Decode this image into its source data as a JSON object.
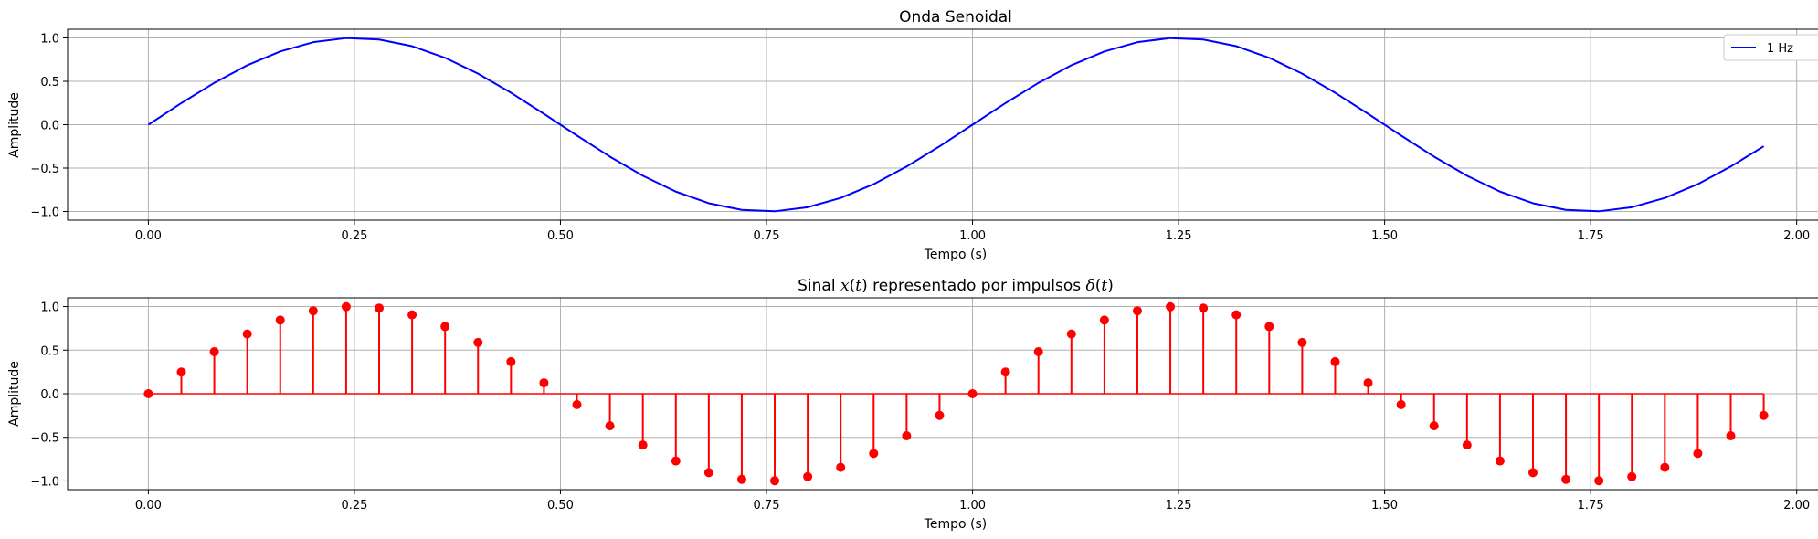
{
  "chart_data": [
    {
      "type": "line",
      "title": "Onda Senoidal",
      "xlabel": "Tempo (s)",
      "ylabel": "Amplitude",
      "xlim": [
        -0.098,
        2.058
      ],
      "ylim": [
        -1.1,
        1.1
      ],
      "xticks": [
        "0.00",
        "0.25",
        "0.50",
        "0.75",
        "1.00",
        "1.25",
        "1.50",
        "1.75",
        "2.00"
      ],
      "yticks": [
        "1.0",
        "0.5",
        "0.0",
        "−0.5",
        "−1.0"
      ],
      "grid": true,
      "legend_position": "top-right",
      "color": "#0000ff",
      "series": [
        {
          "name": "1 Hz",
          "x": [
            0.0,
            0.04,
            0.08,
            0.12,
            0.16,
            0.2,
            0.24,
            0.28,
            0.32,
            0.36,
            0.4,
            0.44,
            0.48,
            0.52,
            0.56,
            0.6,
            0.64,
            0.68,
            0.72,
            0.76,
            0.8,
            0.84,
            0.88,
            0.92,
            0.96,
            1.0,
            1.04,
            1.08,
            1.12,
            1.16,
            1.2,
            1.24,
            1.28,
            1.32,
            1.36,
            1.4,
            1.44,
            1.48,
            1.52,
            1.56,
            1.6,
            1.64,
            1.68,
            1.72,
            1.76,
            1.8,
            1.84,
            1.88,
            1.92,
            1.96
          ],
          "y": [
            0.0,
            0.249,
            0.482,
            0.685,
            0.844,
            0.951,
            0.998,
            0.982,
            0.905,
            0.771,
            0.588,
            0.368,
            0.125,
            -0.125,
            -0.368,
            -0.588,
            -0.771,
            -0.905,
            -0.982,
            -0.998,
            -0.951,
            -0.844,
            -0.685,
            -0.482,
            -0.249,
            0.0,
            0.249,
            0.482,
            0.685,
            0.844,
            0.951,
            0.998,
            0.982,
            0.905,
            0.771,
            0.588,
            0.368,
            0.125,
            -0.125,
            -0.368,
            -0.588,
            -0.771,
            -0.905,
            -0.982,
            -0.998,
            -0.951,
            -0.844,
            -0.685,
            -0.482,
            -0.249
          ]
        }
      ]
    },
    {
      "type": "stem",
      "title_parts": {
        "pre": "Sinal ",
        "math1": "x",
        "mid1": "(",
        "math2": "t",
        "mid2": ") representado por impulsos ",
        "math3": "δ",
        "mid3": "(",
        "math4": "t",
        "post": ")"
      },
      "xlabel": "Tempo (s)",
      "ylabel": "Amplitude",
      "xlim": [
        -0.098,
        2.058
      ],
      "ylim": [
        -1.1,
        1.1
      ],
      "xticks": [
        "0.00",
        "0.25",
        "0.50",
        "0.75",
        "1.00",
        "1.25",
        "1.50",
        "1.75",
        "2.00"
      ],
      "yticks": [
        "1.0",
        "0.5",
        "0.0",
        "−0.5",
        "−1.0"
      ],
      "grid": true,
      "color": "#ff0000",
      "series": [
        {
          "x": [
            0.0,
            0.04,
            0.08,
            0.12,
            0.16,
            0.2,
            0.24,
            0.28,
            0.32,
            0.36,
            0.4,
            0.44,
            0.48,
            0.52,
            0.56,
            0.6,
            0.64,
            0.68,
            0.72,
            0.76,
            0.8,
            0.84,
            0.88,
            0.92,
            0.96,
            1.0,
            1.04,
            1.08,
            1.12,
            1.16,
            1.2,
            1.24,
            1.28,
            1.32,
            1.36,
            1.4,
            1.44,
            1.48,
            1.52,
            1.56,
            1.6,
            1.64,
            1.68,
            1.72,
            1.76,
            1.8,
            1.84,
            1.88,
            1.92,
            1.96
          ],
          "y": [
            0.0,
            0.249,
            0.482,
            0.685,
            0.844,
            0.951,
            0.998,
            0.982,
            0.905,
            0.771,
            0.588,
            0.368,
            0.125,
            -0.125,
            -0.368,
            -0.588,
            -0.771,
            -0.905,
            -0.982,
            -0.998,
            -0.951,
            -0.844,
            -0.685,
            -0.482,
            -0.249,
            0.0,
            0.249,
            0.482,
            0.685,
            0.844,
            0.951,
            0.998,
            0.982,
            0.905,
            0.771,
            0.588,
            0.368,
            0.125,
            -0.125,
            -0.368,
            -0.588,
            -0.771,
            -0.905,
            -0.982,
            -0.998,
            -0.951,
            -0.844,
            -0.685,
            -0.482,
            -0.249
          ]
        }
      ]
    }
  ]
}
